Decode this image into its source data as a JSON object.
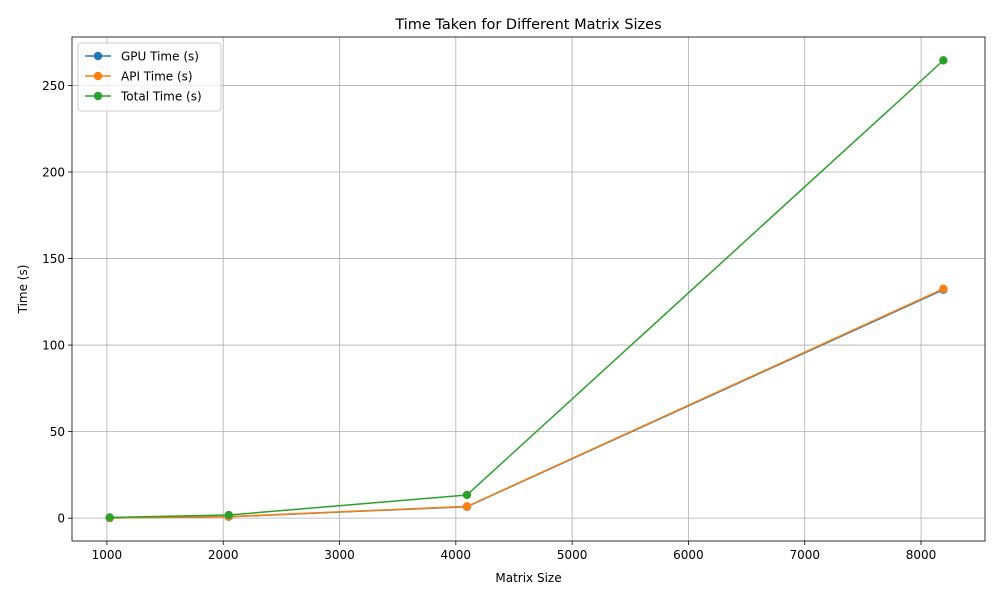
{
  "chart_data": {
    "type": "line",
    "title": "Time Taken for Different Matrix Sizes",
    "xlabel": "Matrix Size",
    "ylabel": "Time (s)",
    "xlim": [
      700,
      8550
    ],
    "ylim": [
      -13.2,
      278
    ],
    "xticks": [
      1000,
      2000,
      3000,
      4000,
      5000,
      6000,
      7000,
      8000
    ],
    "yticks": [
      0,
      50,
      100,
      150,
      200,
      250
    ],
    "grid": true,
    "legend_position": "upper-left",
    "x": [
      1024,
      2048,
      4096,
      8192
    ],
    "series": [
      {
        "name": "GPU Time (s)",
        "color": "#1f77b4",
        "marker": "circle",
        "values": [
          0.1,
          0.8,
          6.6,
          132.0
        ]
      },
      {
        "name": "API Time (s)",
        "color": "#ff7f0e",
        "marker": "circle",
        "values": [
          0.1,
          0.9,
          6.8,
          132.5
        ]
      },
      {
        "name": "Total Time (s)",
        "color": "#2ca02c",
        "marker": "circle",
        "values": [
          0.4,
          1.8,
          13.4,
          264.5
        ]
      }
    ]
  }
}
